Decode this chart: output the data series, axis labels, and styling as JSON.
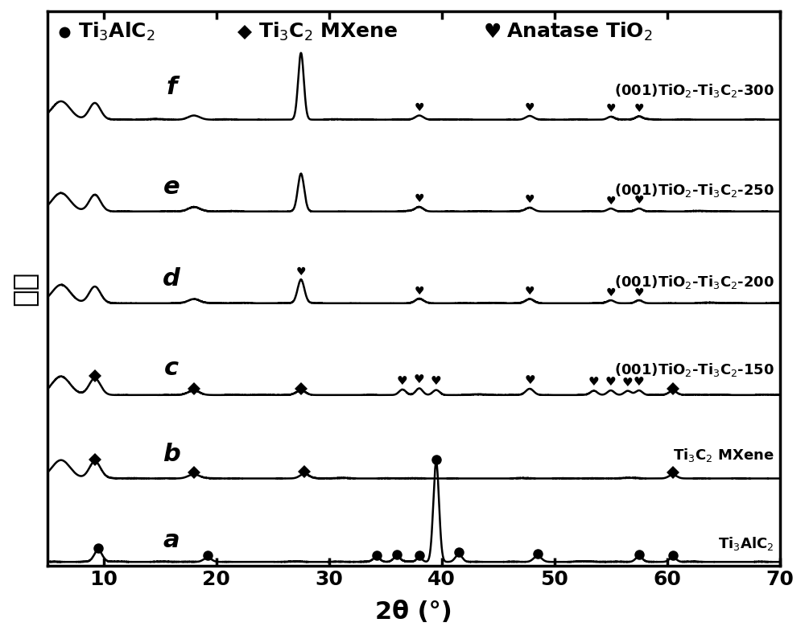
{
  "xlabel": "2θ (°)",
  "ylabel": "强度",
  "xlim": [
    5,
    70
  ],
  "background_color": "#ffffff",
  "curve_labels": [
    "a",
    "b",
    "c",
    "d",
    "e",
    "f"
  ],
  "line_color": "#000000",
  "line_width": 1.8,
  "noise_amplitude": 0.03
}
